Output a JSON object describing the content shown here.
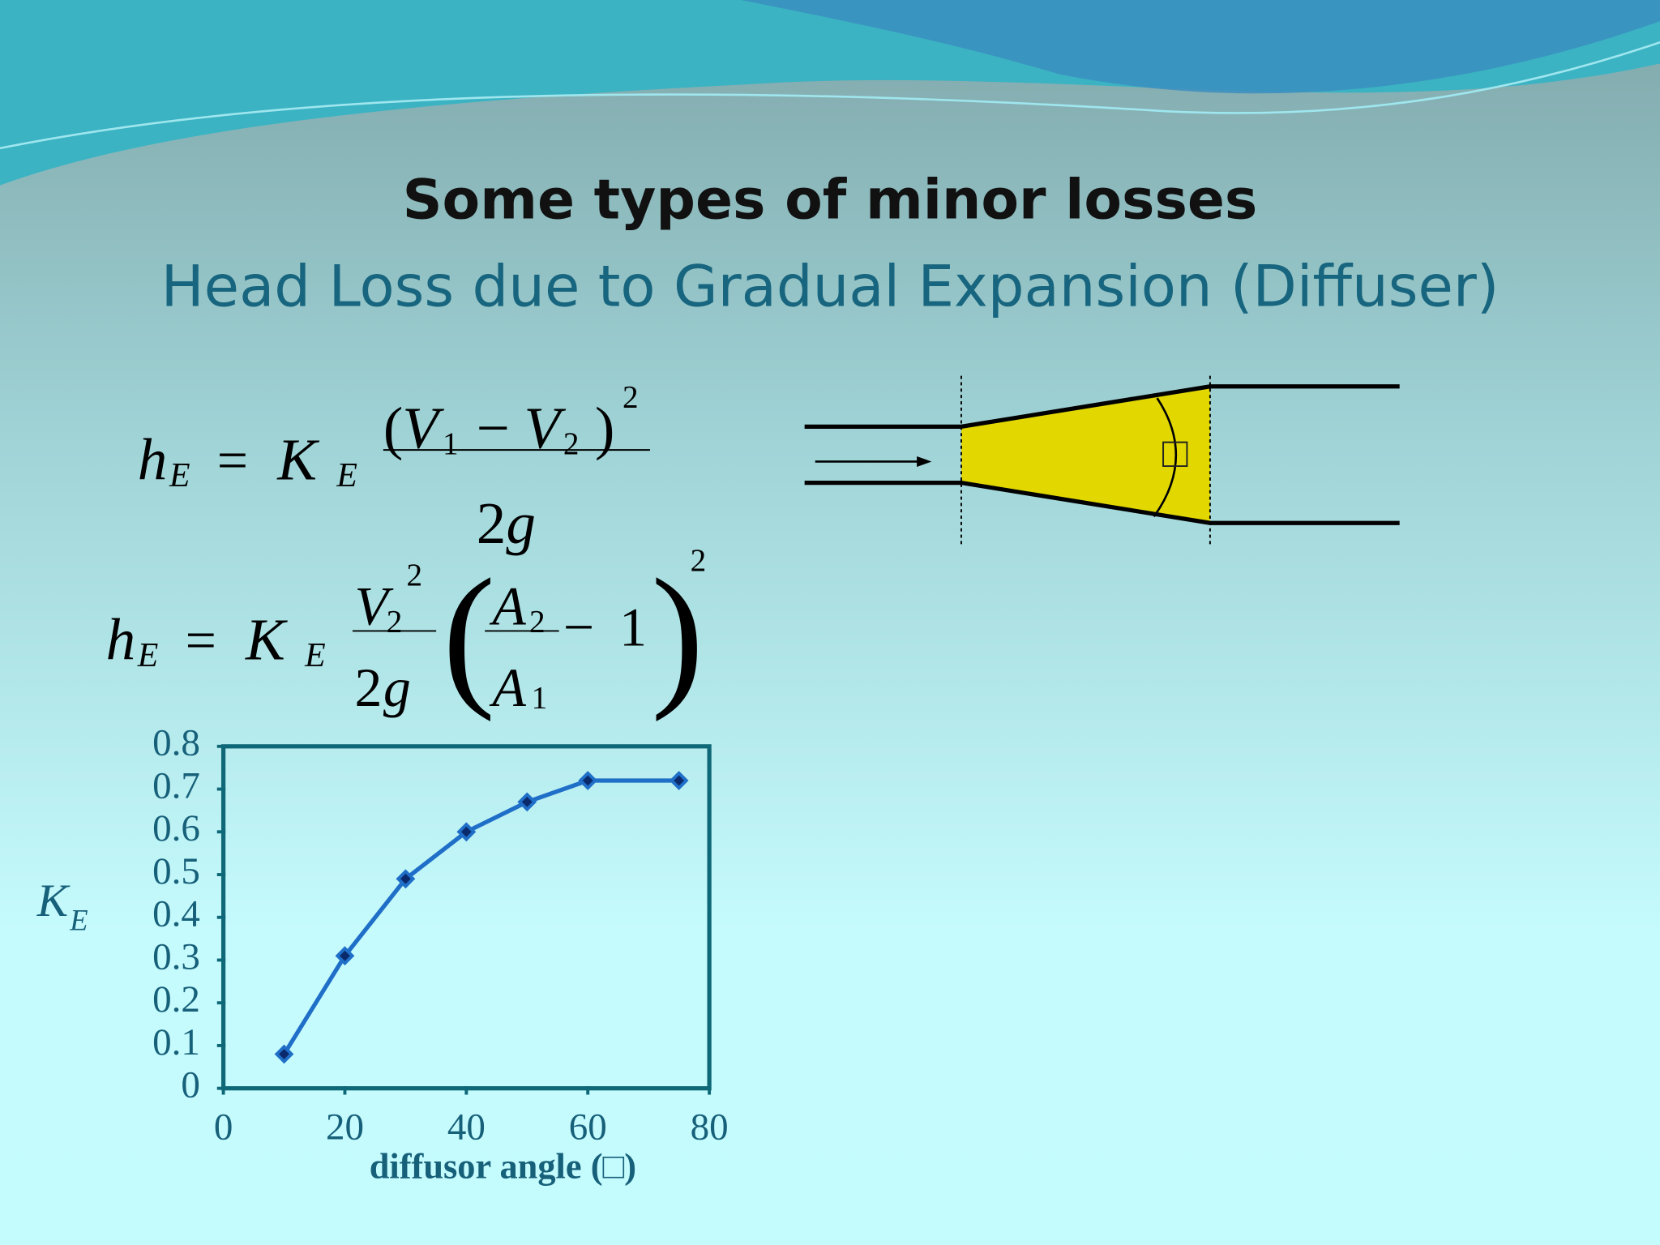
{
  "header": {
    "title": "Some types of minor losses",
    "subtitle": "Head Loss due to Gradual Expansion (Diffuser)"
  },
  "equation_1": [
    "h",
    "E",
    "=",
    "K",
    "E",
    "(",
    "V",
    "1",
    "−",
    "V",
    "2",
    ")",
    "2",
    "2",
    "g"
  ],
  "equation_2": [
    "h",
    "E",
    "=",
    "K",
    "E",
    "V",
    "2",
    "2",
    "2",
    "g",
    "(",
    "A",
    "2",
    "A",
    "1",
    "−",
    "1",
    ")",
    "2"
  ],
  "diagram": {
    "angle_label": "□"
  },
  "chart_data": {
    "type": "line",
    "x": [
      10,
      20,
      30,
      40,
      50,
      60,
      75
    ],
    "values": [
      0.08,
      0.31,
      0.49,
      0.6,
      0.67,
      0.72,
      0.72
    ],
    "color": "#1f6fc8",
    "marker_color": "#0b2a6b",
    "xlim": [
      0,
      80
    ],
    "xticks": [
      0,
      20,
      40,
      60,
      80
    ],
    "ylim": [
      0,
      0.8
    ],
    "yticks": [
      0,
      0.1,
      0.2,
      0.3,
      0.4,
      0.5,
      0.6,
      0.7,
      0.8
    ],
    "y_label": "K",
    "y_label_sub": "E",
    "x_label": "diffusor angle (□)",
    "grid": false
  }
}
